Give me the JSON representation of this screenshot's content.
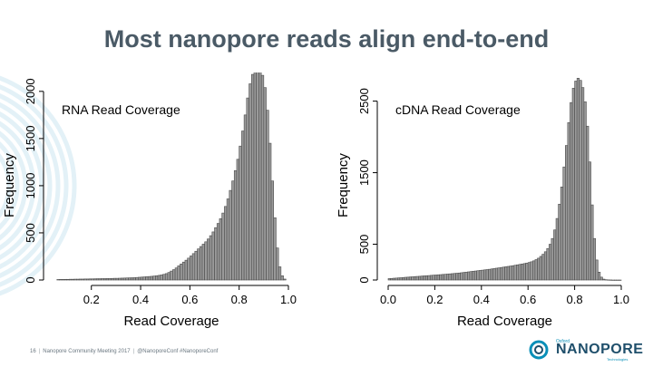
{
  "slide": {
    "title": "Most nanopore reads align end-to-end",
    "footer": {
      "page_number": "16",
      "event": "Nanopore Community Meeting 2017",
      "handle": "@NanoporeConf #NanoporeConf"
    },
    "logo": {
      "small": "Oxford",
      "word": "NANOPORE",
      "tag": "Technologies"
    },
    "colors": {
      "title": "#4a5a66",
      "bars": "#4a4a4a",
      "logo_blue": "#0a8fb8",
      "decoration": "#e3f1f7"
    }
  },
  "chart_data": [
    {
      "type": "bar",
      "title": "RNA Read Coverage",
      "xlabel": "Read Coverage",
      "ylabel": "Frequency",
      "xlim": [
        0.05,
        1.0
      ],
      "ylim": [
        0,
        2200
      ],
      "xticks": [
        "0.2",
        "0.4",
        "0.6",
        "0.8",
        "1.0"
      ],
      "yticks": [
        "0",
        "500",
        "1000",
        "1500",
        "2000"
      ],
      "bin_width": 0.01,
      "x": [
        0.065,
        0.075,
        0.085,
        0.095,
        0.105,
        0.115,
        0.125,
        0.135,
        0.145,
        0.155,
        0.165,
        0.175,
        0.185,
        0.195,
        0.205,
        0.215,
        0.225,
        0.235,
        0.245,
        0.255,
        0.265,
        0.275,
        0.285,
        0.295,
        0.305,
        0.315,
        0.325,
        0.335,
        0.345,
        0.355,
        0.365,
        0.375,
        0.385,
        0.395,
        0.405,
        0.415,
        0.425,
        0.435,
        0.445,
        0.455,
        0.465,
        0.475,
        0.485,
        0.495,
        0.505,
        0.515,
        0.525,
        0.535,
        0.545,
        0.555,
        0.565,
        0.575,
        0.585,
        0.595,
        0.605,
        0.615,
        0.625,
        0.635,
        0.645,
        0.655,
        0.665,
        0.675,
        0.685,
        0.695,
        0.705,
        0.715,
        0.725,
        0.735,
        0.745,
        0.755,
        0.765,
        0.775,
        0.785,
        0.795,
        0.805,
        0.815,
        0.825,
        0.835,
        0.845,
        0.855,
        0.865,
        0.875,
        0.885,
        0.895,
        0.905,
        0.915,
        0.925,
        0.935,
        0.945,
        0.955,
        0.965,
        0.975,
        0.985
      ],
      "values": [
        5,
        6,
        6,
        7,
        7,
        8,
        8,
        9,
        9,
        10,
        10,
        11,
        11,
        12,
        12,
        13,
        14,
        14,
        15,
        15,
        16,
        16,
        17,
        18,
        18,
        19,
        20,
        21,
        22,
        23,
        24,
        25,
        27,
        29,
        31,
        33,
        35,
        37,
        39,
        42,
        45,
        49,
        54,
        60,
        68,
        80,
        95,
        110,
        128,
        150,
        170,
        190,
        210,
        232,
        255,
        280,
        305,
        330,
        355,
        380,
        405,
        435,
        470,
        510,
        555,
        600,
        650,
        710,
        780,
        860,
        950,
        1050,
        1160,
        1280,
        1420,
        1580,
        1750,
        1930,
        2080,
        2180,
        2240,
        2240,
        2230,
        2170,
        2040,
        1800,
        1450,
        1050,
        660,
        340,
        140,
        45,
        10
      ]
    },
    {
      "type": "bar",
      "title": "cDNA Read Coverage",
      "xlabel": "Read Coverage",
      "ylabel": "Frequency",
      "xlim": [
        0.0,
        1.0
      ],
      "ylim": [
        0,
        2900
      ],
      "xticks": [
        "0.0",
        "0.2",
        "0.4",
        "0.6",
        "0.8",
        "1.0"
      ],
      "yticks": [
        "0",
        "500",
        "1500",
        "2500"
      ],
      "bin_width": 0.01,
      "x": [
        0.005,
        0.015,
        0.025,
        0.035,
        0.045,
        0.055,
        0.065,
        0.075,
        0.085,
        0.095,
        0.105,
        0.115,
        0.125,
        0.135,
        0.145,
        0.155,
        0.165,
        0.175,
        0.185,
        0.195,
        0.205,
        0.215,
        0.225,
        0.235,
        0.245,
        0.255,
        0.265,
        0.275,
        0.285,
        0.295,
        0.305,
        0.315,
        0.325,
        0.335,
        0.345,
        0.355,
        0.365,
        0.375,
        0.385,
        0.395,
        0.405,
        0.415,
        0.425,
        0.435,
        0.445,
        0.455,
        0.465,
        0.475,
        0.485,
        0.495,
        0.505,
        0.515,
        0.525,
        0.535,
        0.545,
        0.555,
        0.565,
        0.575,
        0.585,
        0.595,
        0.605,
        0.615,
        0.625,
        0.635,
        0.645,
        0.655,
        0.665,
        0.675,
        0.685,
        0.695,
        0.705,
        0.715,
        0.725,
        0.735,
        0.745,
        0.755,
        0.765,
        0.775,
        0.785,
        0.795,
        0.805,
        0.815,
        0.825,
        0.835,
        0.845,
        0.855,
        0.865,
        0.875,
        0.885,
        0.895,
        0.905,
        0.915,
        0.925,
        0.935,
        0.945,
        0.955,
        0.965,
        0.975,
        0.985,
        0.995
      ],
      "values": [
        20,
        22,
        25,
        27,
        30,
        32,
        35,
        38,
        40,
        43,
        45,
        48,
        50,
        52,
        55,
        58,
        60,
        62,
        65,
        68,
        70,
        73,
        75,
        78,
        80,
        83,
        86,
        89,
        92,
        95,
        98,
        102,
        106,
        110,
        114,
        118,
        122,
        126,
        130,
        134,
        138,
        142,
        146,
        150,
        155,
        160,
        165,
        170,
        175,
        180,
        185,
        190,
        195,
        200,
        206,
        212,
        218,
        224,
        230,
        237,
        245,
        255,
        268,
        285,
        305,
        330,
        360,
        395,
        440,
        500,
        580,
        700,
        860,
        1060,
        1300,
        1580,
        1880,
        2200,
        2480,
        2680,
        2780,
        2820,
        2790,
        2690,
        2490,
        2150,
        1650,
        1050,
        580,
        280,
        110,
        40,
        12,
        4,
        2,
        1,
        0,
        0,
        0,
        0
      ]
    }
  ]
}
